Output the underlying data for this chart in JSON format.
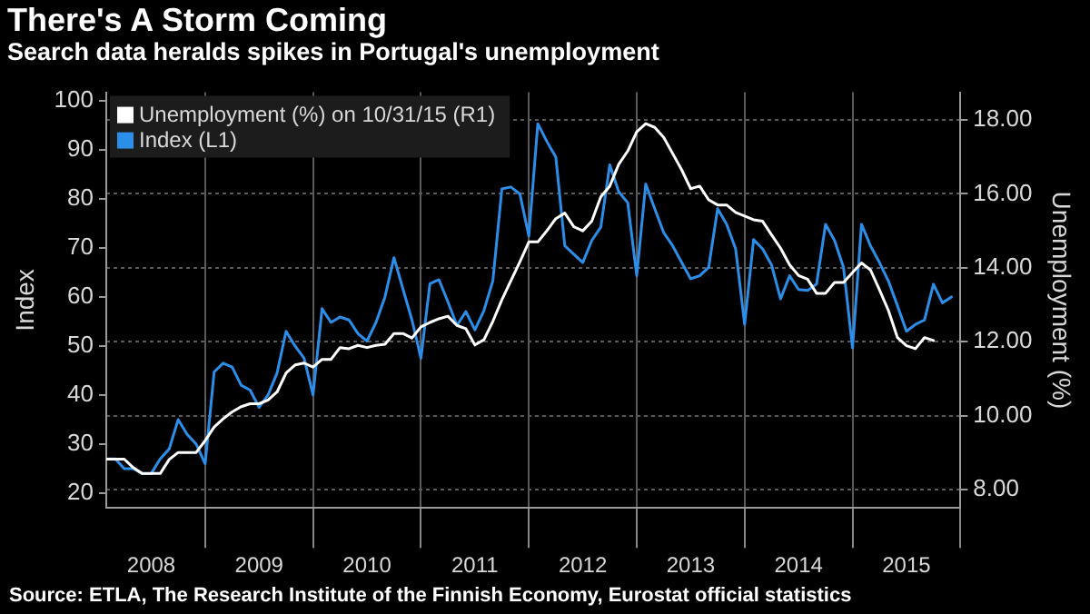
{
  "chart_data": {
    "type": "line",
    "title": "There's A Storm Coming",
    "subtitle": "Search data heralds spikes in Portugal's unemployment",
    "ylabel": "Index",
    "y2label": "Unemployment (%)",
    "annotations": [
      "Source: ETLA, The Research Institute of the Finnish Economy, Eurostat official statistics"
    ],
    "xlim": [
      "2008-02",
      "2016-01"
    ],
    "xticks": [
      {
        "value": "2009-01",
        "label": null
      },
      {
        "value": "2010-01",
        "label": null
      },
      {
        "value": "2011-01",
        "label": null
      },
      {
        "value": "2012-01",
        "label": null
      },
      {
        "value": "2013-01",
        "label": null
      },
      {
        "value": "2014-01",
        "label": null
      },
      {
        "value": "2015-01",
        "label": null
      },
      {
        "value": "2016-01",
        "label": null
      },
      {
        "value": "2008-07",
        "label": "2008"
      },
      {
        "value": "2009-07",
        "label": "2009"
      },
      {
        "value": "2010-07",
        "label": "2010"
      },
      {
        "value": "2011-07",
        "label": "2011"
      },
      {
        "value": "2012-07",
        "label": "2012"
      },
      {
        "value": "2013-07",
        "label": "2013"
      },
      {
        "value": "2014-07",
        "label": "2014"
      },
      {
        "value": "2015-07",
        "label": "2015"
      }
    ],
    "ylim": [
      17,
      101.7
    ],
    "yticks": [
      20,
      30,
      40,
      50,
      60,
      70,
      80,
      90,
      100
    ],
    "y2lim": [
      7.5,
      18.75
    ],
    "y2ticks": [
      {
        "value": 8,
        "label": "8.00"
      },
      {
        "value": 10,
        "label": "10.00"
      },
      {
        "value": 12,
        "label": "12.00"
      },
      {
        "value": 14,
        "label": "14.00"
      },
      {
        "value": 16,
        "label": "16.00"
      },
      {
        "value": 18,
        "label": "18.00"
      }
    ],
    "grid": true,
    "legend": "top left",
    "series": [
      {
        "name": "Unemployment (%) on 10/31/15 (R1)",
        "color": "#ffffff",
        "axis": "y2",
        "x": [
          "2008-02",
          "2008-03",
          "2008-04",
          "2008-05",
          "2008-06",
          "2008-07",
          "2008-08",
          "2008-09",
          "2008-10",
          "2008-11",
          "2008-12",
          "2009-01",
          "2009-02",
          "2009-03",
          "2009-04",
          "2009-05",
          "2009-06",
          "2009-07",
          "2009-08",
          "2009-09",
          "2009-10",
          "2009-11",
          "2009-12",
          "2010-01",
          "2010-02",
          "2010-03",
          "2010-04",
          "2010-05",
          "2010-06",
          "2010-07",
          "2010-08",
          "2010-09",
          "2010-10",
          "2010-11",
          "2010-12",
          "2011-01",
          "2011-02",
          "2011-03",
          "2011-04",
          "2011-05",
          "2011-06",
          "2011-07",
          "2011-08",
          "2011-09",
          "2011-10",
          "2011-11",
          "2011-12",
          "2012-01",
          "2012-02",
          "2012-03",
          "2012-04",
          "2012-05",
          "2012-06",
          "2012-07",
          "2012-08",
          "2012-09",
          "2012-10",
          "2012-11",
          "2012-12",
          "2013-01",
          "2013-02",
          "2013-03",
          "2013-04",
          "2013-05",
          "2013-06",
          "2013-07",
          "2013-08",
          "2013-09",
          "2013-10",
          "2013-11",
          "2013-12",
          "2014-01",
          "2014-02",
          "2014-03",
          "2014-04",
          "2014-05",
          "2014-06",
          "2014-07",
          "2014-08",
          "2014-09",
          "2014-10",
          "2014-11",
          "2014-12",
          "2015-01",
          "2015-02",
          "2015-03",
          "2015-04",
          "2015-05",
          "2015-06",
          "2015-07",
          "2015-08",
          "2015-09",
          "2015-10"
        ],
        "values": [
          8.82,
          8.82,
          8.82,
          8.59,
          8.43,
          8.43,
          8.43,
          8.81,
          9.0,
          9.0,
          9.0,
          9.32,
          9.69,
          9.91,
          10.1,
          10.24,
          10.32,
          10.32,
          10.42,
          10.64,
          11.15,
          11.37,
          11.42,
          11.31,
          11.52,
          11.52,
          11.84,
          11.81,
          11.9,
          11.84,
          11.9,
          11.93,
          12.22,
          12.22,
          12.1,
          12.4,
          12.52,
          12.62,
          12.69,
          12.44,
          12.35,
          11.91,
          12.05,
          12.55,
          13.13,
          13.65,
          14.16,
          14.7,
          14.7,
          15.0,
          15.33,
          15.48,
          15.11,
          15.0,
          15.26,
          15.92,
          16.21,
          16.8,
          17.16,
          17.68,
          17.9,
          17.8,
          17.53,
          17.09,
          16.65,
          16.14,
          16.21,
          15.84,
          15.7,
          15.7,
          15.5,
          15.4,
          15.3,
          15.26,
          14.89,
          14.53,
          14.08,
          13.79,
          13.69,
          13.31,
          13.31,
          13.6,
          13.6,
          13.87,
          14.13,
          13.94,
          13.4,
          12.84,
          12.11,
          11.89,
          11.81,
          12.11,
          12.03
        ]
      },
      {
        "name": "Index (L1)",
        "color": "#2b8ee8",
        "x": [
          "2008-02",
          "2008-03",
          "2008-04",
          "2008-05",
          "2008-06",
          "2008-07",
          "2008-08",
          "2008-09",
          "2008-10",
          "2008-11",
          "2008-12",
          "2009-01",
          "2009-02",
          "2009-03",
          "2009-04",
          "2009-05",
          "2009-06",
          "2009-07",
          "2009-08",
          "2009-09",
          "2009-10",
          "2009-11",
          "2009-12",
          "2010-01",
          "2010-02",
          "2010-03",
          "2010-04",
          "2010-05",
          "2010-06",
          "2010-07",
          "2010-08",
          "2010-09",
          "2010-10",
          "2010-11",
          "2010-12",
          "2011-01",
          "2011-02",
          "2011-03",
          "2011-04",
          "2011-05",
          "2011-06",
          "2011-07",
          "2011-08",
          "2011-09",
          "2011-10",
          "2011-11",
          "2011-12",
          "2012-01",
          "2012-02",
          "2012-03",
          "2012-04",
          "2012-05",
          "2012-06",
          "2012-07",
          "2012-08",
          "2012-09",
          "2012-10",
          "2012-11",
          "2012-12",
          "2013-01",
          "2013-02",
          "2013-03",
          "2013-04",
          "2013-05",
          "2013-06",
          "2013-07",
          "2013-08",
          "2013-09",
          "2013-10",
          "2013-11",
          "2013-12",
          "2014-01",
          "2014-02",
          "2014-03",
          "2014-04",
          "2014-05",
          "2014-06",
          "2014-07",
          "2014-08",
          "2014-09",
          "2014-10",
          "2014-11",
          "2014-12",
          "2015-01",
          "2015-02",
          "2015-03",
          "2015-04",
          "2015-05",
          "2015-06",
          "2015-07",
          "2015-08",
          "2015-09",
          "2015-10",
          "2015-11",
          "2015-12"
        ],
        "values": [
          27,
          27,
          25,
          25,
          24,
          24,
          27,
          29,
          35,
          32,
          30,
          26,
          44.7,
          46.5,
          45.7,
          42,
          41,
          37.5,
          40,
          44.5,
          53,
          50,
          47.5,
          40,
          57.6,
          54.8,
          55.9,
          55.3,
          52.5,
          51,
          54.8,
          60,
          68,
          61.6,
          55.3,
          47.5,
          62.7,
          63.5,
          59,
          54.2,
          57,
          53.3,
          57.2,
          63.3,
          82,
          82.4,
          81,
          72.4,
          95.3,
          91.7,
          88.5,
          70.4,
          68.7,
          67,
          71.5,
          74.2,
          86.9,
          81.4,
          79.2,
          64.3,
          83,
          78,
          73.1,
          70.4,
          67,
          63.7,
          64.3,
          66,
          78,
          74.8,
          69.8,
          54.4,
          71.7,
          69.8,
          66.5,
          59.6,
          64.3,
          61.5,
          61.3,
          62.6,
          74.8,
          71.5,
          66,
          49.6,
          74.8,
          70.4,
          67,
          63.2,
          58.2,
          53,
          54.4,
          55.3,
          62.6,
          58.8,
          60
        ]
      }
    ]
  }
}
